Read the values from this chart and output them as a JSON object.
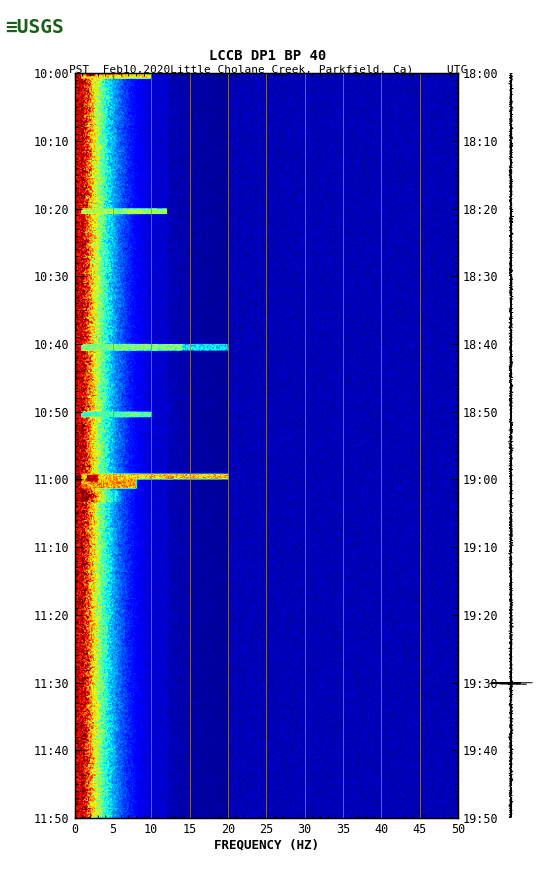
{
  "title_line1": "LCCB DP1 BP 40",
  "title_line2": "PST  Feb10,2020Little Cholane Creek, Parkfield, Ca)     UTC",
  "xlabel": "FREQUENCY (HZ)",
  "freq_min": 0,
  "freq_max": 50,
  "pst_ticks": [
    "10:00",
    "10:10",
    "10:20",
    "10:30",
    "10:40",
    "10:50",
    "11:00",
    "11:10",
    "11:20",
    "11:30",
    "11:40",
    "11:50"
  ],
  "utc_ticks": [
    "18:00",
    "18:10",
    "18:20",
    "18:30",
    "18:40",
    "18:50",
    "19:00",
    "19:10",
    "19:20",
    "19:30",
    "19:40",
    "19:50"
  ],
  "freq_ticks": [
    0,
    5,
    10,
    15,
    20,
    25,
    30,
    35,
    40,
    45,
    50
  ],
  "vertical_lines_freq": [
    5,
    10,
    15,
    20,
    25,
    30,
    35,
    40,
    45
  ],
  "spectrogram_colormap": "jet",
  "n_time": 660,
  "n_freq": 500,
  "noise_seed": 42,
  "usgs_color": "#1a5e1a",
  "fig_width": 5.52,
  "fig_height": 8.92,
  "dpi": 100
}
